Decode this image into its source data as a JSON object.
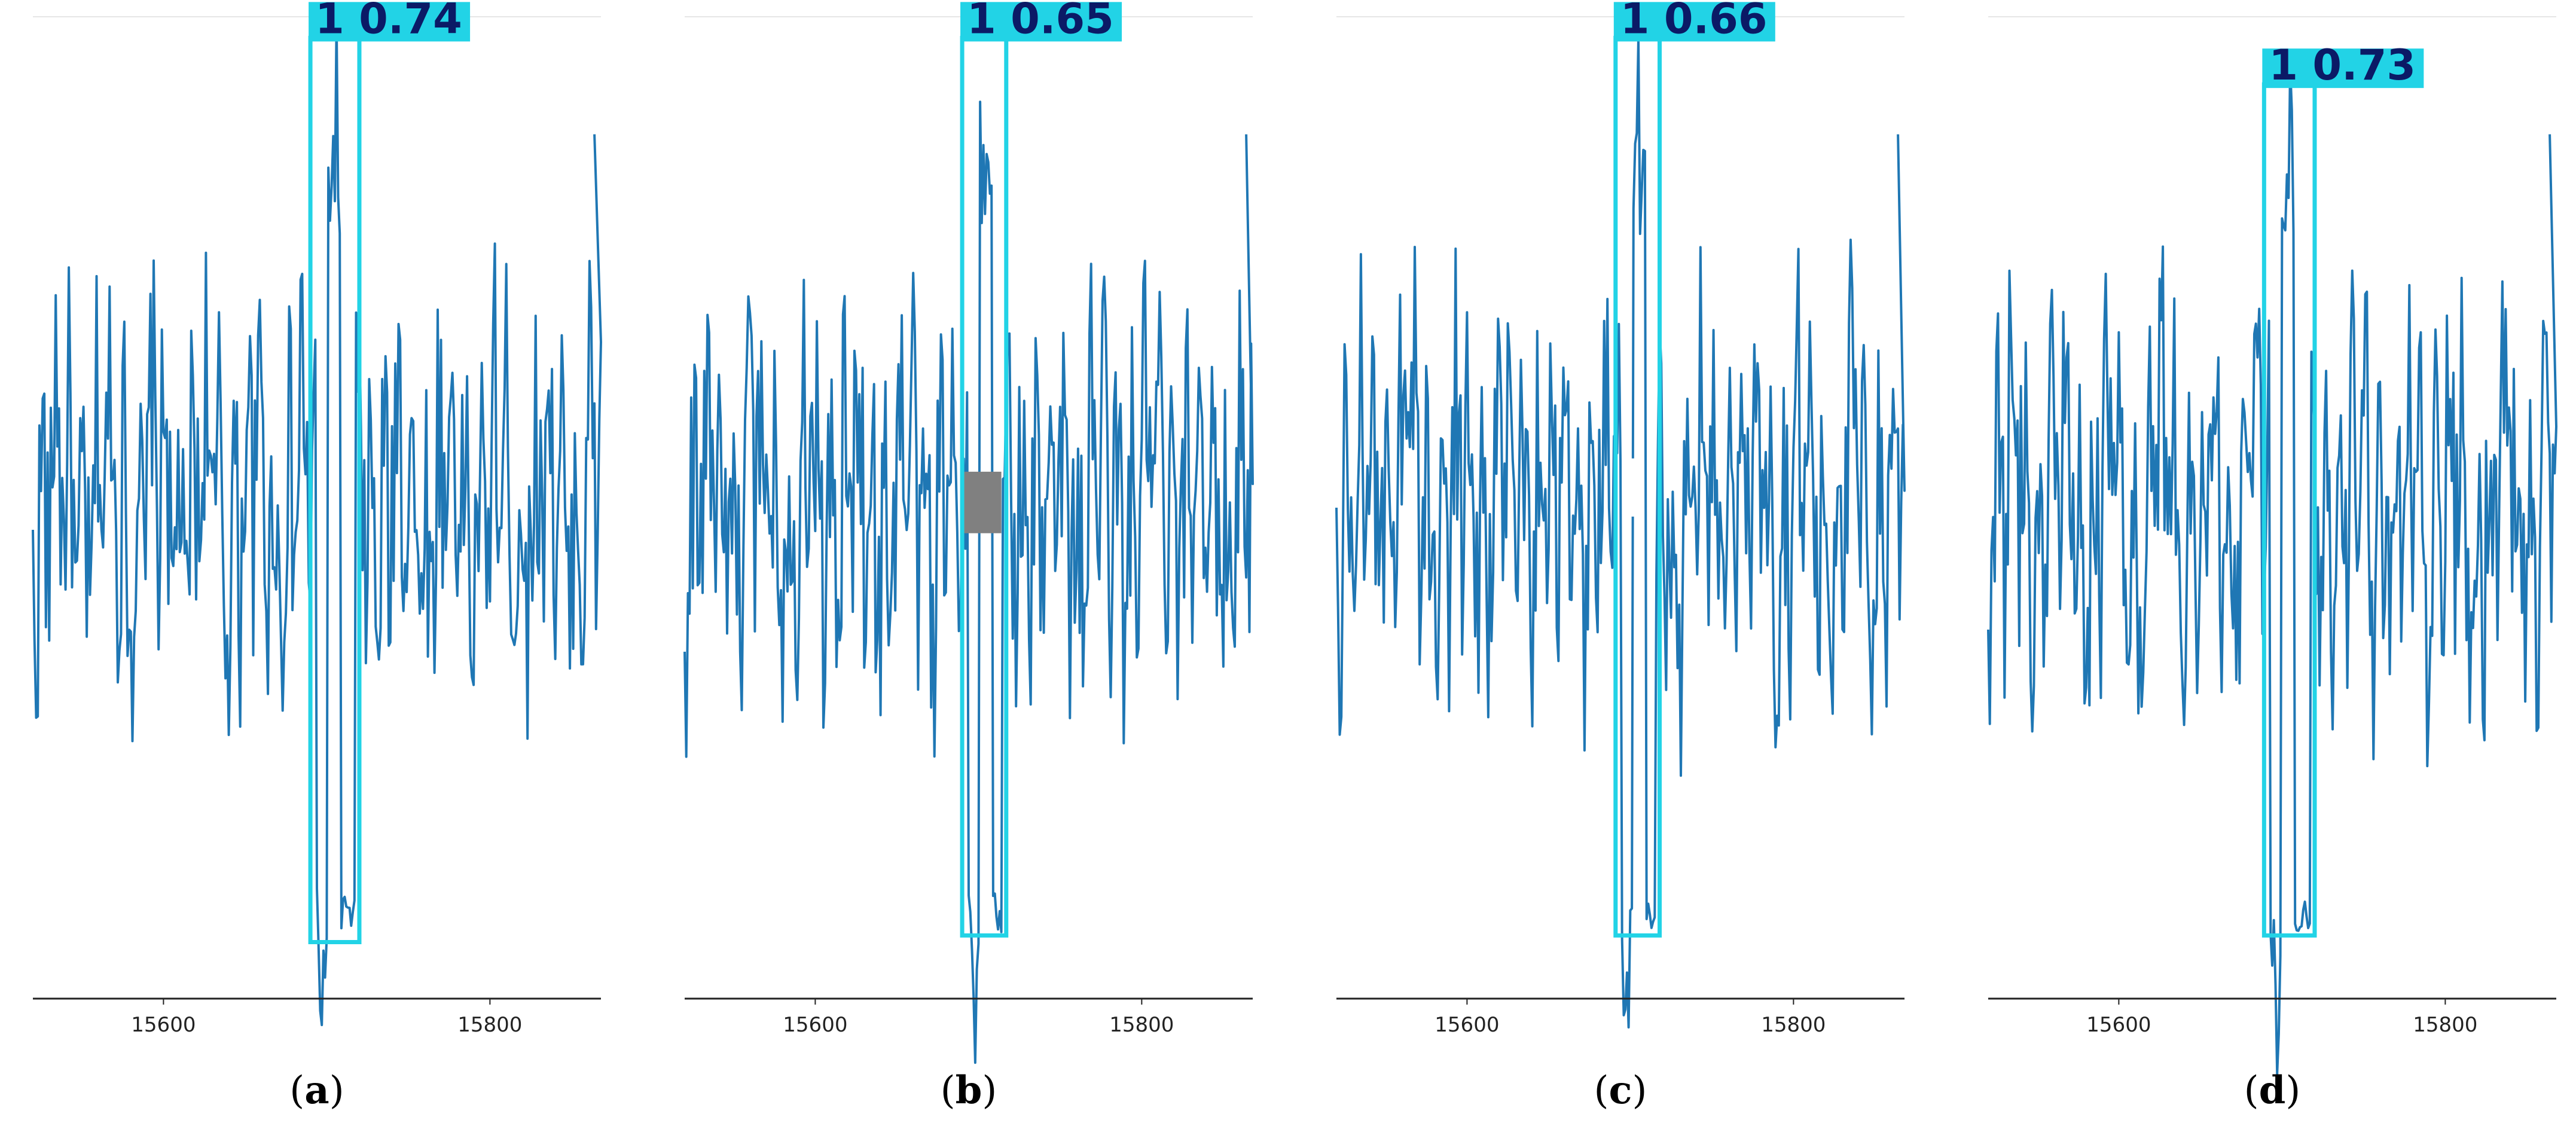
{
  "colors": {
    "signal": "#1f77b4",
    "box": "#22d3e6",
    "label_bg": "#22d3e6",
    "label_text": "#0b1a66",
    "axis": "#222222",
    "top_rule": "#e6e6e6",
    "patch": "#808080"
  },
  "chart_data": [
    {
      "type": "line",
      "caption": "a",
      "x_ticks": [
        15600,
        15800
      ],
      "xlim": [
        15520,
        15868
      ],
      "ylim": [
        -3.0,
        2.9
      ],
      "detection": {
        "class": "1",
        "score": "0.74",
        "x_range": [
          15690,
          15720
        ],
        "y_range": [
          -2.66,
          2.78
        ]
      },
      "occlusion_patch": null,
      "trim_after": 15868
    },
    {
      "type": "line",
      "caption": "b",
      "x_ticks": [
        15600,
        15800
      ],
      "xlim": [
        15520,
        15868
      ],
      "ylim": [
        -3.0,
        2.9
      ],
      "detection": {
        "class": "1",
        "score": "0.65",
        "x_range": [
          15690,
          15717
        ],
        "y_range": [
          -2.62,
          2.78
        ]
      },
      "occlusion_patch": {
        "x_range": [
          15690,
          15714
        ],
        "y_range": [
          -0.2,
          0.17
        ]
      },
      "trim_after": 15868
    },
    {
      "type": "line",
      "caption": "c",
      "x_ticks": [
        15600,
        15800
      ],
      "xlim": [
        15520,
        15868
      ],
      "ylim": [
        -3.0,
        2.9
      ],
      "detection": {
        "class": "1",
        "score": "0.66",
        "x_range": [
          15691,
          15718
        ],
        "y_range": [
          -2.62,
          2.78
        ]
      },
      "occlusion_patch": null,
      "gap_masks": [
        {
          "x_range": [
            15699,
            15705
          ],
          "y_range": [
            -0.1,
            0.25
          ]
        }
      ],
      "trim_after": 15868
    },
    {
      "type": "line",
      "caption": "d",
      "x_ticks": [
        15600,
        15800
      ],
      "xlim": [
        15520,
        15868
      ],
      "ylim": [
        -3.0,
        2.9
      ],
      "detection": {
        "class": "1",
        "score": "0.73",
        "x_range": [
          15689,
          15720
        ],
        "y_range": [
          -2.62,
          2.5
        ]
      },
      "occlusion_patch": null,
      "trim_after": 15868
    }
  ]
}
